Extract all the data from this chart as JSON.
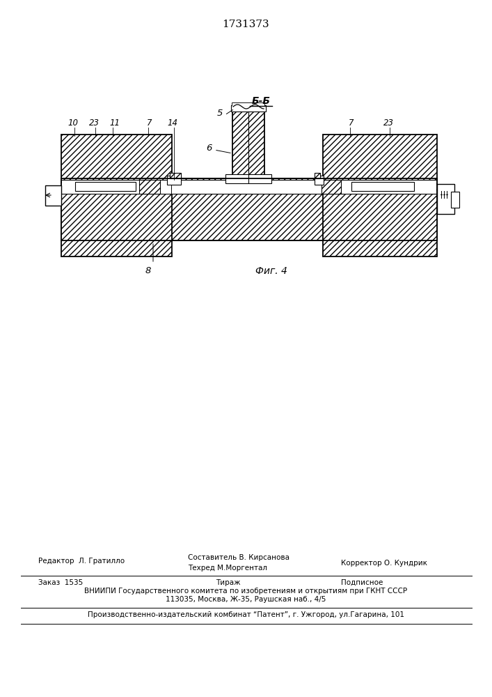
{
  "title": "1731373",
  "fig_label": "Фиг. 4",
  "section_label": "Б-Б",
  "label_5": "5",
  "label_6": "6",
  "label_7": "7",
  "label_8": "8",
  "label_10": "10",
  "label_11": "11",
  "label_14": "14",
  "label_23": "23",
  "footer_editor": "Редактор  Л. Гратилло",
  "footer_comp": "Составитель В. Кирсанова",
  "footer_tech": "Техред М.Моргентал",
  "footer_corr": "Корректор О. Кундрик",
  "footer_order": "Заказ  1535",
  "footer_tirazh": "Тираж",
  "footer_podp": "Подписное",
  "footer_vniip1": "ВНИИПИ Государственного комитета по изобретениям и открытиям при ГКНТ СССР",
  "footer_vniip2": "113035, Москва, Ж-35, Раушская наб., 4/5",
  "footer_patent": "Производственно-издательский комбинат “Патент”, г. Ужгород, ул.Гагарина, 101"
}
